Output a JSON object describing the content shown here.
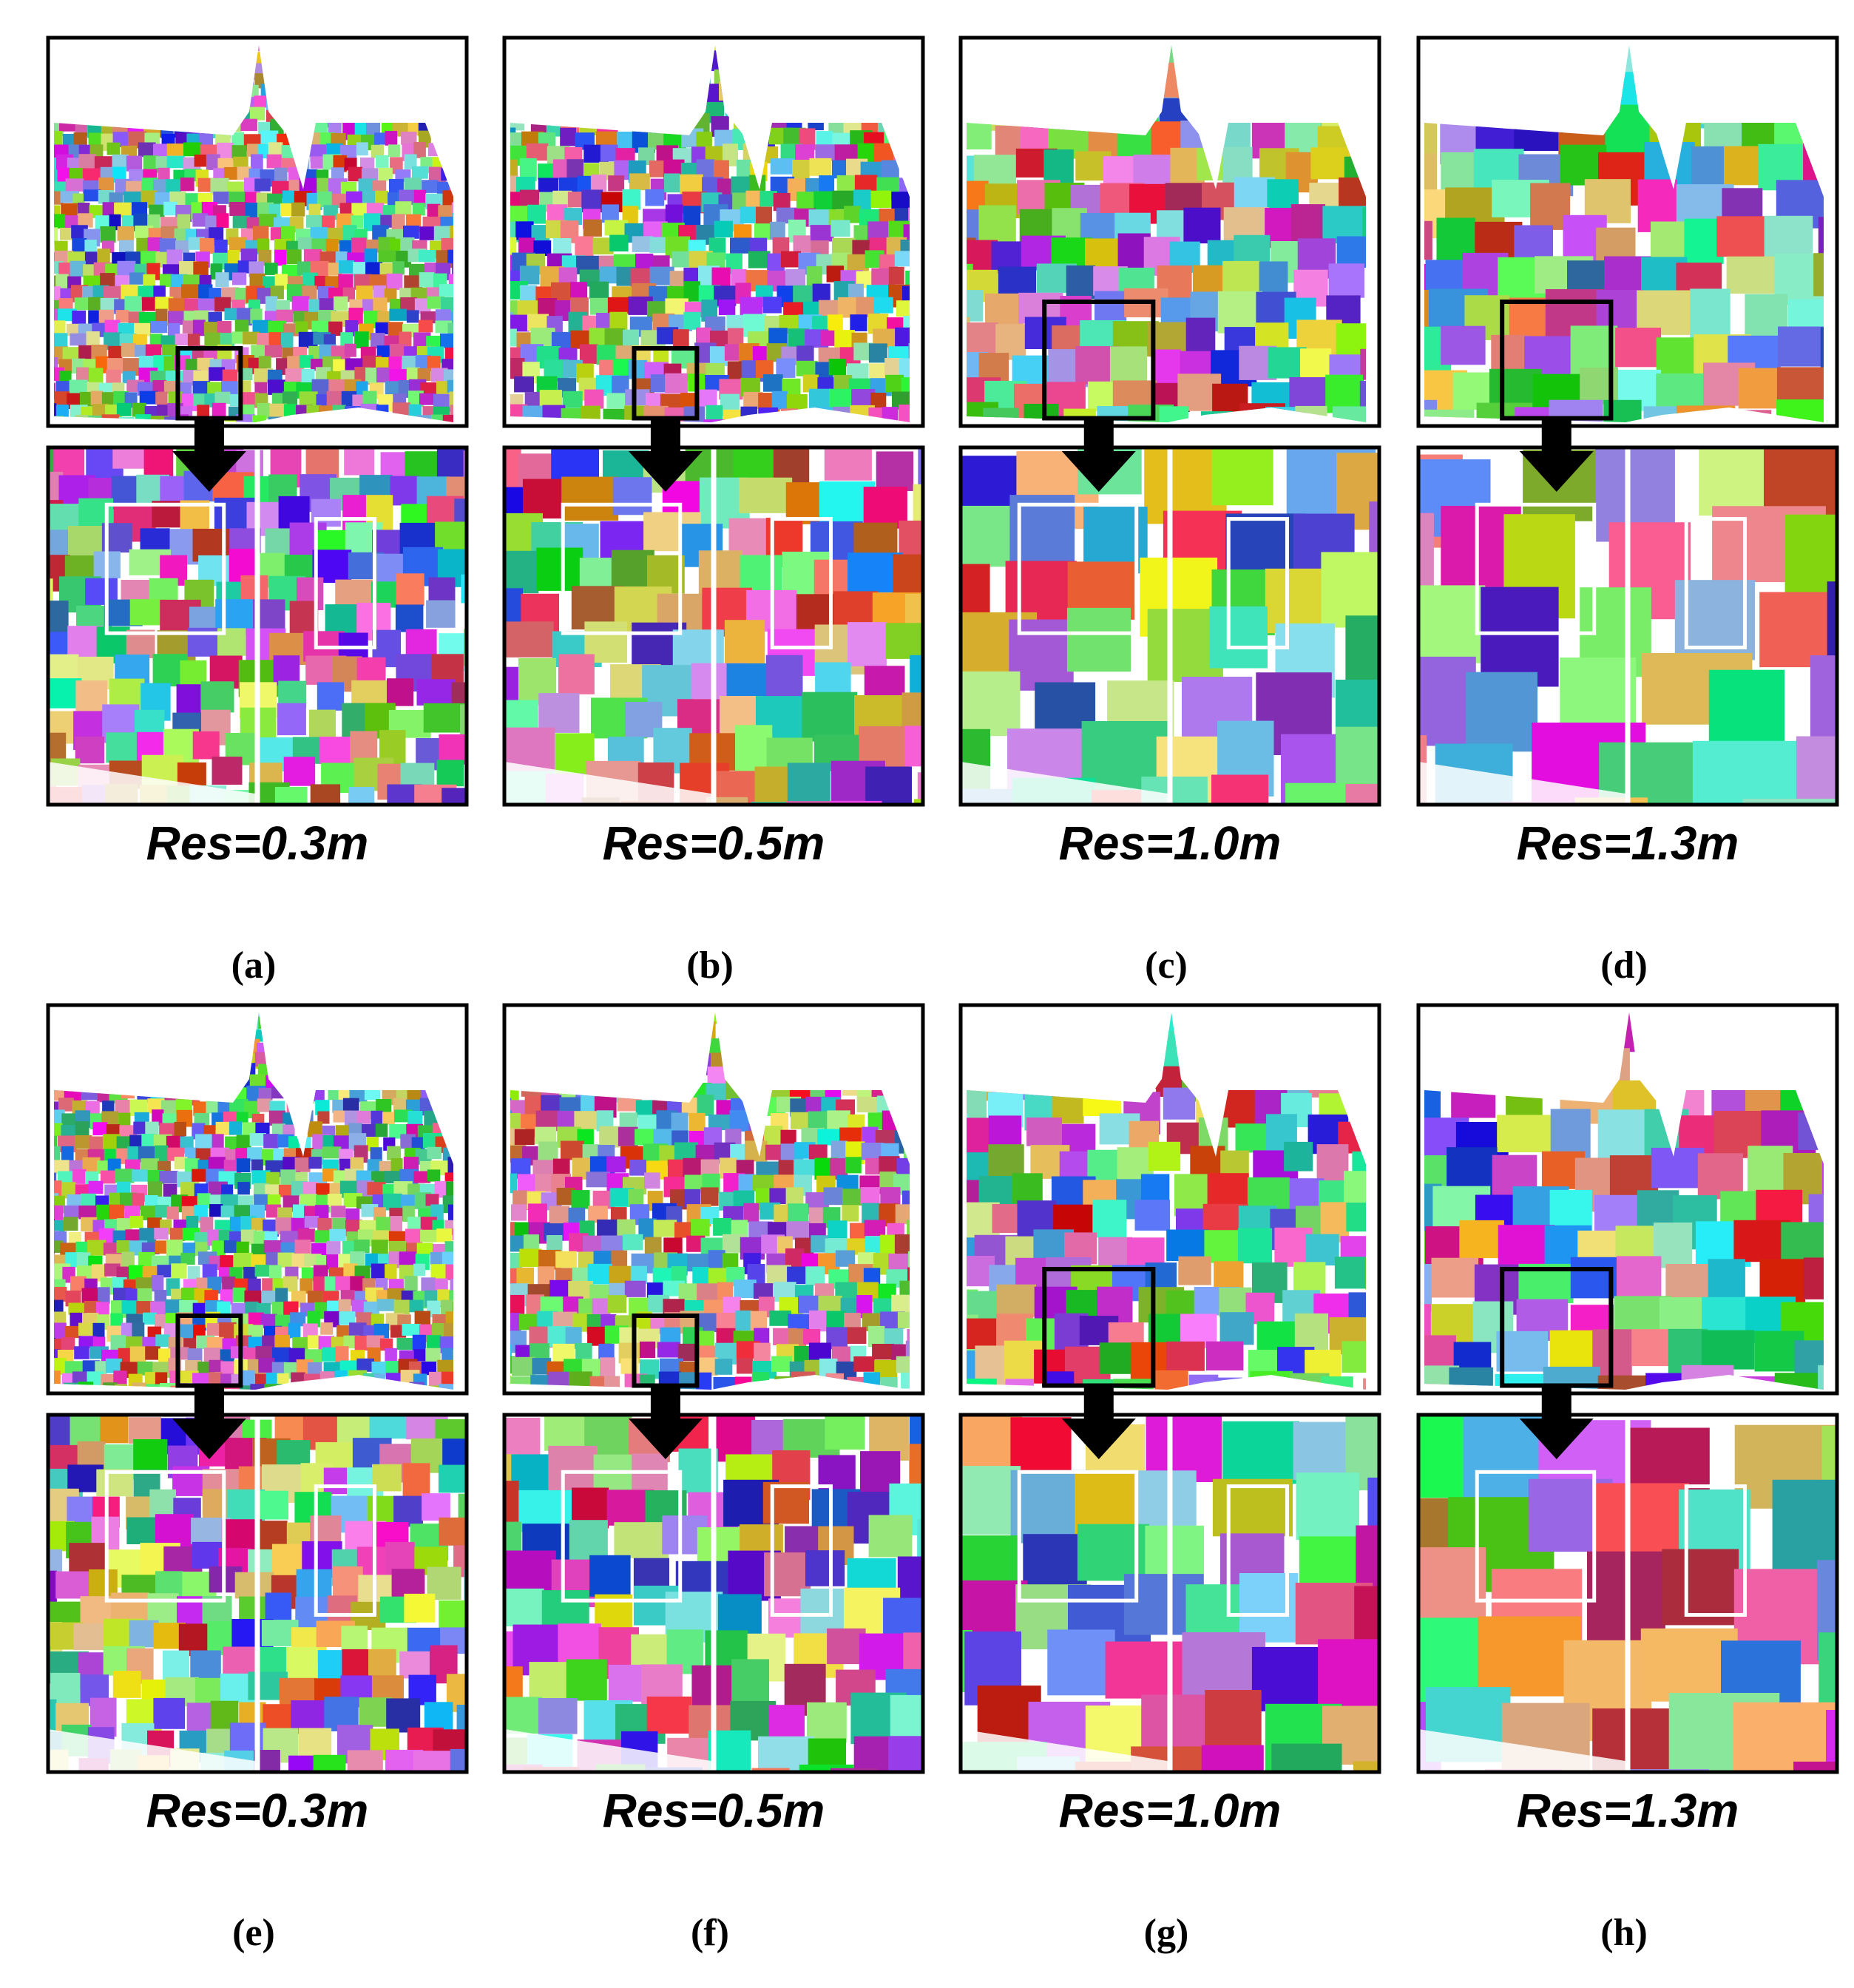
{
  "panels": [
    {
      "label": "Res=0.3m",
      "caption": "(a)"
    },
    {
      "label": "Res=0.5m",
      "caption": "(b)"
    },
    {
      "label": "Res=1.0m",
      "caption": "(c)"
    },
    {
      "label": "Res=1.3m",
      "caption": "(d)"
    },
    {
      "label": "Res=0.3m",
      "caption": "(e)"
    },
    {
      "label": "Res=0.5m",
      "caption": "(f)"
    },
    {
      "label": "Res=1.0m",
      "caption": "(g)"
    },
    {
      "label": "Res=1.3m",
      "caption": "(h)"
    }
  ]
}
